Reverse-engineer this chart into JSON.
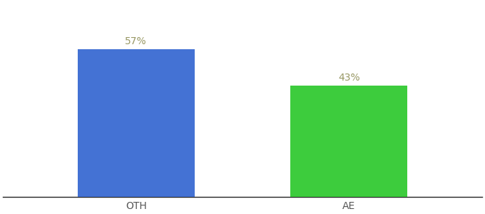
{
  "categories": [
    "OTH",
    "AE"
  ],
  "values": [
    57,
    43
  ],
  "bar_colors": [
    "#4472d4",
    "#3dcc3d"
  ],
  "label_texts": [
    "57%",
    "43%"
  ],
  "label_color": "#999966",
  "ylim": [
    0,
    75
  ],
  "background_color": "#ffffff",
  "bar_width": 0.22,
  "tick_fontsize": 10,
  "label_fontsize": 10,
  "spine_color": "#222222",
  "x_positions": [
    0.3,
    0.7
  ]
}
